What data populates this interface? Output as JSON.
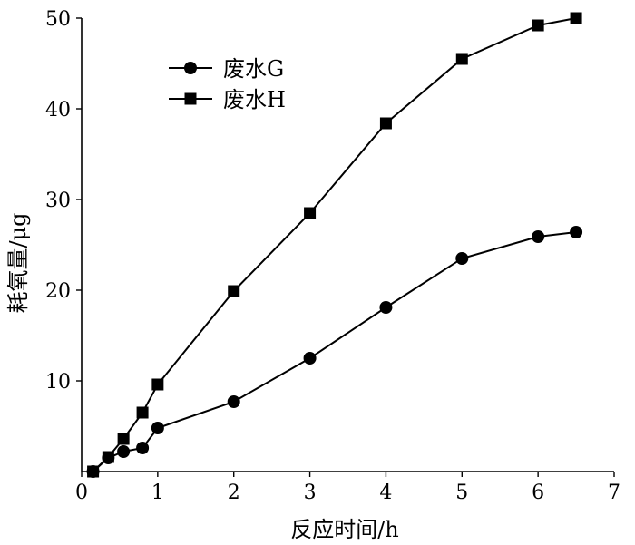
{
  "chart_data": {
    "type": "line",
    "title": "",
    "xlabel": "反应时间/h",
    "ylabel": "耗氧量/μg",
    "xlim": [
      0,
      7
    ],
    "ylim": [
      0,
      50
    ],
    "xticks": [
      0,
      1,
      2,
      3,
      4,
      5,
      6,
      7
    ],
    "yticks": [
      10,
      20,
      30,
      40,
      50
    ],
    "grid": false,
    "legend_position": "top-left",
    "series": [
      {
        "name": "废水G",
        "marker": "circle",
        "color": "#000000",
        "x": [
          0.15,
          0.35,
          0.55,
          0.8,
          1.0,
          2.0,
          3.0,
          4.0,
          5.0,
          6.0,
          6.5
        ],
        "y": [
          0.0,
          1.5,
          2.2,
          2.6,
          4.8,
          7.7,
          12.5,
          18.1,
          23.5,
          25.9,
          26.4
        ]
      },
      {
        "name": "废水H",
        "marker": "square",
        "color": "#000000",
        "x": [
          0.15,
          0.35,
          0.55,
          0.8,
          1.0,
          2.0,
          3.0,
          4.0,
          5.0,
          6.0,
          6.5
        ],
        "y": [
          0.0,
          1.6,
          3.6,
          6.5,
          9.6,
          19.9,
          28.5,
          38.4,
          45.5,
          49.2,
          50.0
        ]
      }
    ]
  }
}
